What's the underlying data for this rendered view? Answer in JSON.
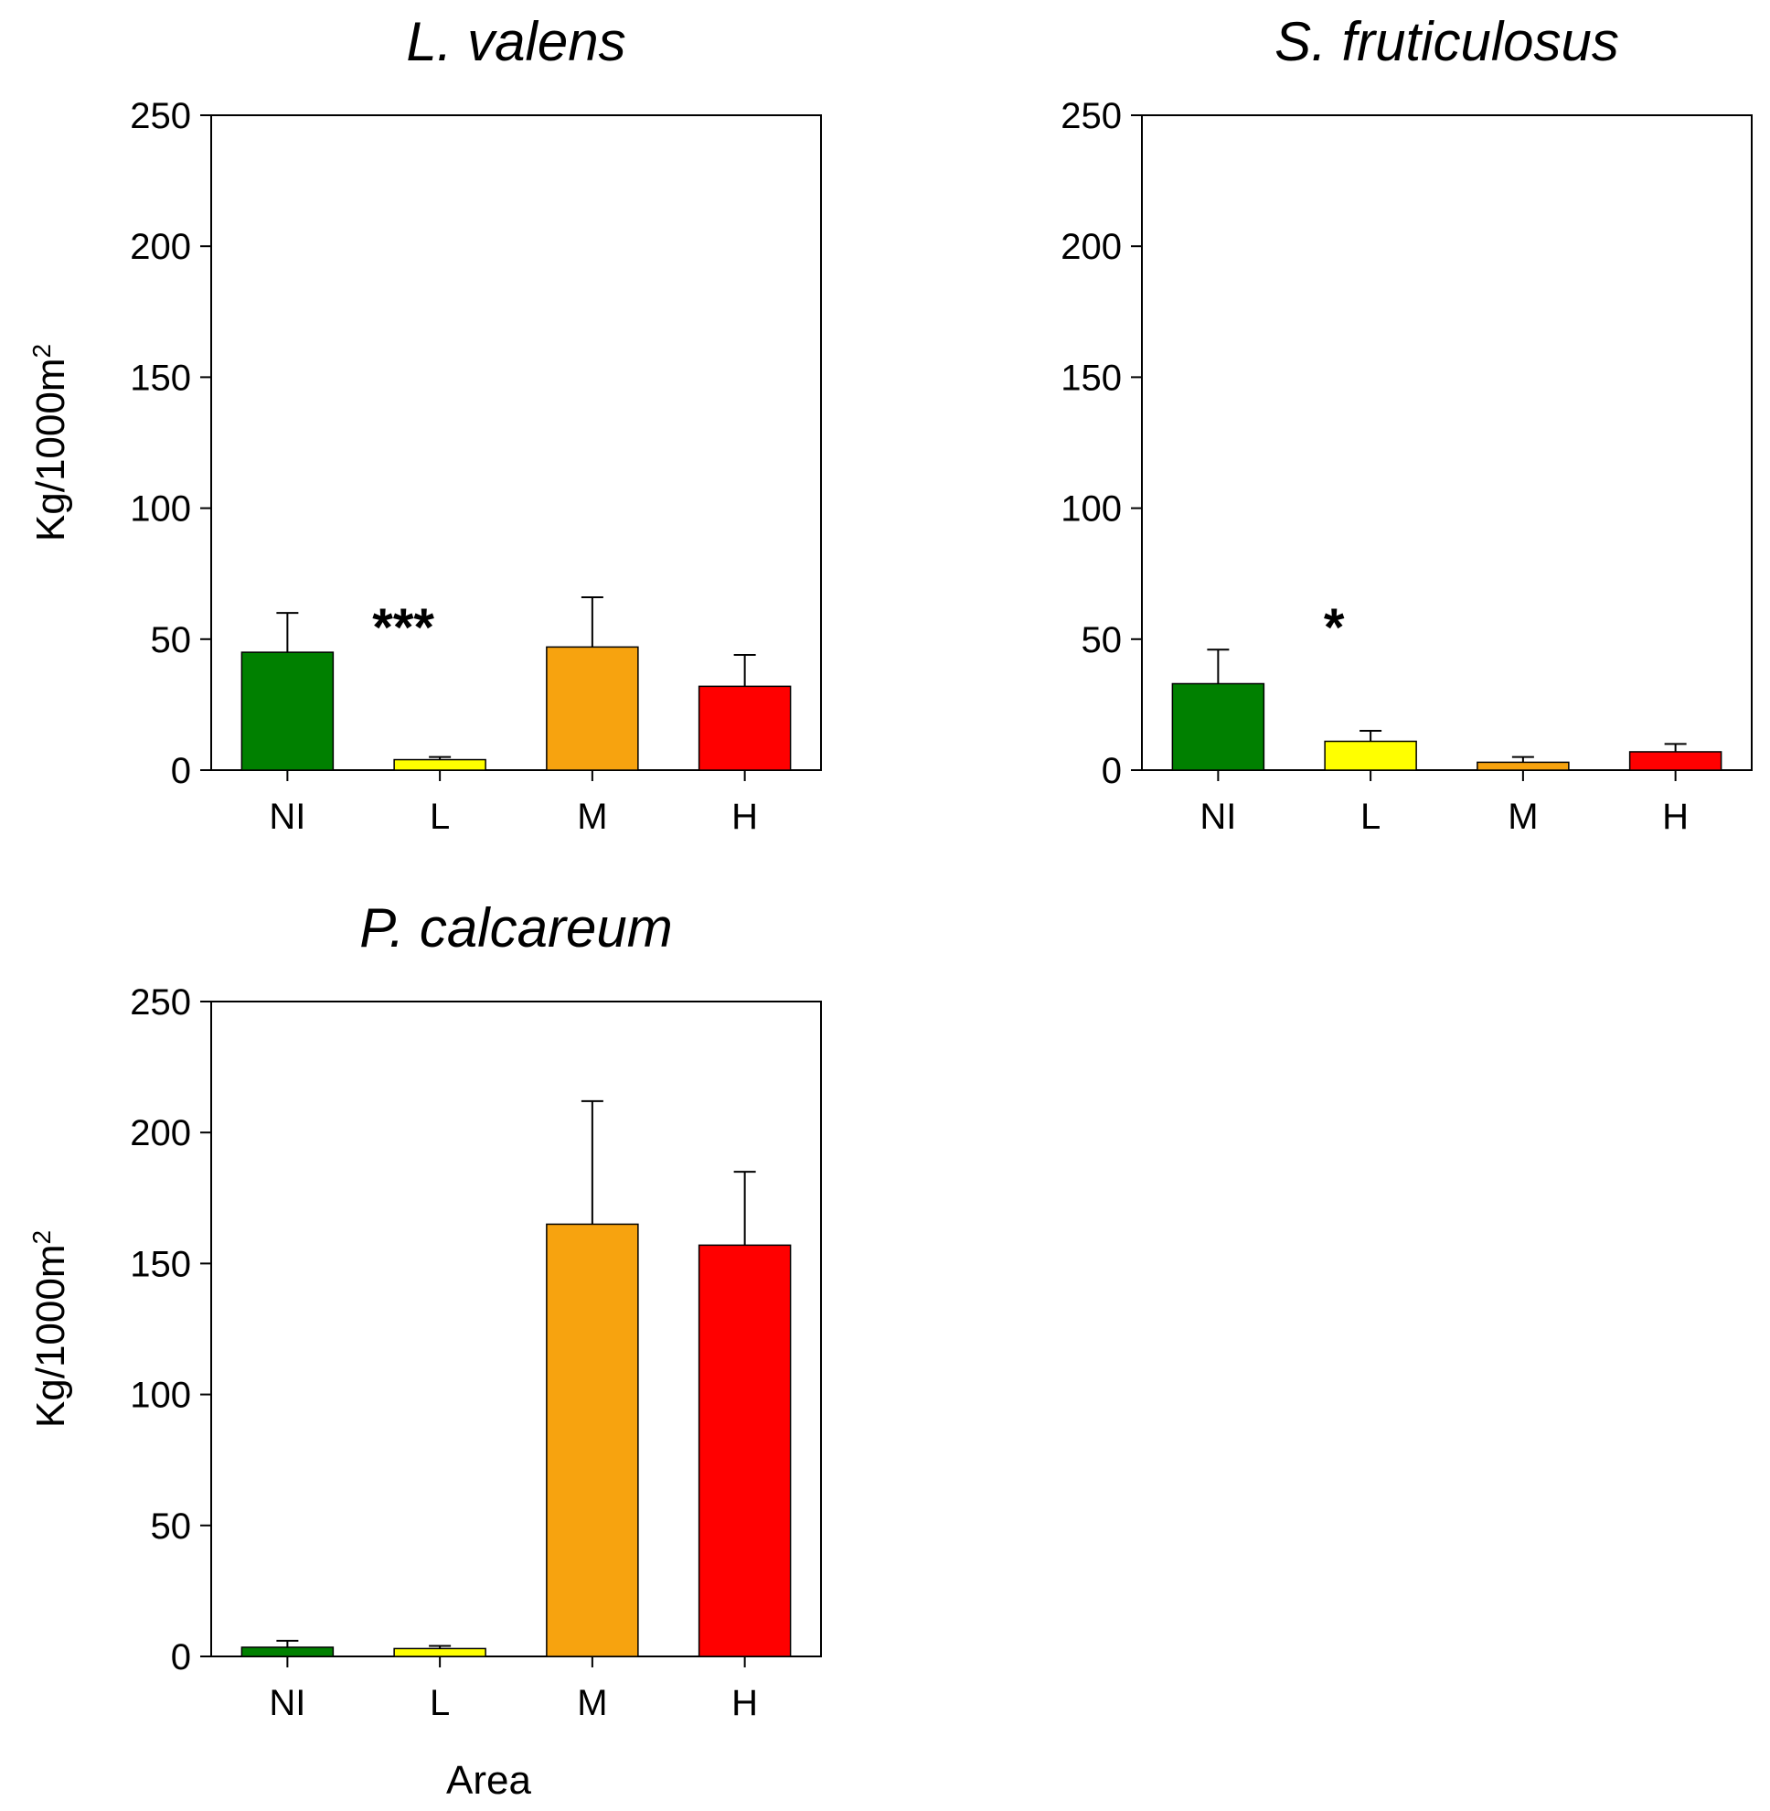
{
  "chart_data": [
    {
      "type": "bar",
      "title": "L. valens",
      "categories": [
        "NI",
        "L",
        "M",
        "H"
      ],
      "values": [
        45,
        4,
        47,
        32
      ],
      "errors": [
        15,
        1,
        19,
        12
      ],
      "colors": [
        "#008000",
        "#ffff00",
        "#f7a30f",
        "#ff0000"
      ],
      "ylim": [
        0,
        250
      ],
      "yticks": [
        "0",
        "50",
        "100",
        "150",
        "200",
        "250"
      ],
      "ylabel": "Kg/1000m",
      "ylabel_sup": "2",
      "xlabel": "",
      "annotation": {
        "text": "***",
        "category": "L"
      }
    },
    {
      "type": "bar",
      "title": "S. fruticulosus",
      "categories": [
        "NI",
        "L",
        "M",
        "H"
      ],
      "values": [
        33,
        11,
        3,
        7
      ],
      "errors": [
        13,
        4,
        2,
        3
      ],
      "colors": [
        "#008000",
        "#ffff00",
        "#f7a30f",
        "#ff0000"
      ],
      "ylim": [
        0,
        250
      ],
      "yticks": [
        "0",
        "50",
        "100",
        "150",
        "200",
        "250"
      ],
      "ylabel": "",
      "ylabel_sup": "",
      "xlabel": "",
      "annotation": {
        "text": "*",
        "category": "L"
      }
    },
    {
      "type": "bar",
      "title": "P. calcareum",
      "categories": [
        "NI",
        "L",
        "M",
        "H"
      ],
      "values": [
        3.5,
        3,
        165,
        157
      ],
      "errors": [
        2.5,
        1,
        47,
        28
      ],
      "colors": [
        "#008000",
        "#ffff00",
        "#f7a30f",
        "#ff0000"
      ],
      "ylim": [
        0,
        250
      ],
      "yticks": [
        "0",
        "50",
        "100",
        "150",
        "200",
        "250"
      ],
      "ylabel": "Kg/1000m",
      "ylabel_sup": "2",
      "xlabel": "Area",
      "annotation": null
    }
  ]
}
